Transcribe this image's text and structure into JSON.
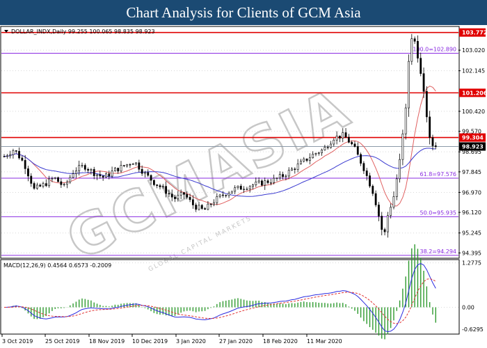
{
  "header": {
    "title": "Chart Analysis for Clients of GCM Asia"
  },
  "watermark": {
    "text": "GCMASIA",
    "sub": "GLOBAL CAPITAL MARKETS"
  },
  "chart_data": [
    {
      "type": "candlestick",
      "symbol_line": "DOLLAR_INDX,Daily  99.255 100.065 98.835 98.923",
      "ylim": [
        94.2,
        104.0
      ],
      "y_ticks": [
        "103.020",
        "102.145",
        "100.420",
        "99.570",
        "98.695",
        "97.845",
        "96.970",
        "96.120",
        "95.245",
        "94.395"
      ],
      "x_labels": [
        "3 Oct 2019",
        "25 Oct 2019",
        "18 Nov 2019",
        "10 Dec 2019",
        "3 Jan 2020",
        "27 Jan 2020",
        "18 Feb 2020",
        "11 Mar 2020"
      ],
      "current_price": {
        "label": "98.923",
        "value": 98.923
      },
      "horizontal_levels": [
        {
          "label": "103.772",
          "value": 103.772,
          "style": "resistance"
        },
        {
          "label": "101.206",
          "value": 101.206,
          "style": "resistance"
        },
        {
          "label": "99.304",
          "value": 99.304,
          "style": "resistance"
        }
      ],
      "fibonacci_levels": [
        {
          "label": "100.0=102.890",
          "value": 102.89
        },
        {
          "label": "61.8=97.576",
          "value": 97.576
        },
        {
          "label": "50.0=95.935",
          "value": 95.935
        },
        {
          "label": "38.2=94.294",
          "value": 94.294
        }
      ],
      "close_path": [
        [
          0,
          98.5
        ],
        [
          5,
          98.8
        ],
        [
          10,
          98.2
        ],
        [
          15,
          97.1
        ],
        [
          20,
          97.3
        ],
        [
          25,
          97.6
        ],
        [
          30,
          97.2
        ],
        [
          35,
          97.9
        ],
        [
          40,
          98.1
        ],
        [
          45,
          97.8
        ],
        [
          50,
          97.6
        ],
        [
          55,
          97.9
        ],
        [
          60,
          98.1
        ],
        [
          65,
          98.3
        ],
        [
          70,
          97.8
        ],
        [
          75,
          97.4
        ],
        [
          80,
          97.1
        ],
        [
          85,
          96.7
        ],
        [
          90,
          96.9
        ],
        [
          95,
          96.4
        ],
        [
          100,
          96.2
        ],
        [
          105,
          96.6
        ],
        [
          110,
          96.9
        ],
        [
          115,
          97.1
        ],
        [
          120,
          97.2
        ],
        [
          125,
          97.3
        ],
        [
          130,
          97.4
        ],
        [
          135,
          97.5
        ],
        [
          140,
          97.7
        ],
        [
          145,
          98.0
        ],
        [
          150,
          98.3
        ],
        [
          155,
          98.6
        ],
        [
          160,
          98.8
        ],
        [
          165,
          99.3
        ],
        [
          170,
          99.4
        ],
        [
          175,
          98.9
        ],
        [
          180,
          98.0
        ],
        [
          185,
          96.9
        ],
        [
          188,
          95.8
        ],
        [
          190,
          95.0
        ],
        [
          192,
          96.0
        ],
        [
          195,
          96.8
        ],
        [
          198,
          98.3
        ],
        [
          201,
          100.5
        ],
        [
          203,
          103.3
        ],
        [
          205,
          103.6
        ],
        [
          207,
          102.8
        ],
        [
          209,
          101.7
        ],
        [
          211,
          100.6
        ],
        [
          213,
          99.2
        ],
        [
          215,
          98.9
        ],
        [
          217,
          99.1
        ]
      ],
      "sample_step": 1.5
    },
    {
      "type": "line",
      "title": "MACD(12,26,9) 0.4564 0.6573 -0.2009",
      "ylim": [
        -0.75,
        1.35
      ],
      "y_ticks": [
        "1.2775",
        "0.00",
        "-0.6295"
      ]
    }
  ]
}
